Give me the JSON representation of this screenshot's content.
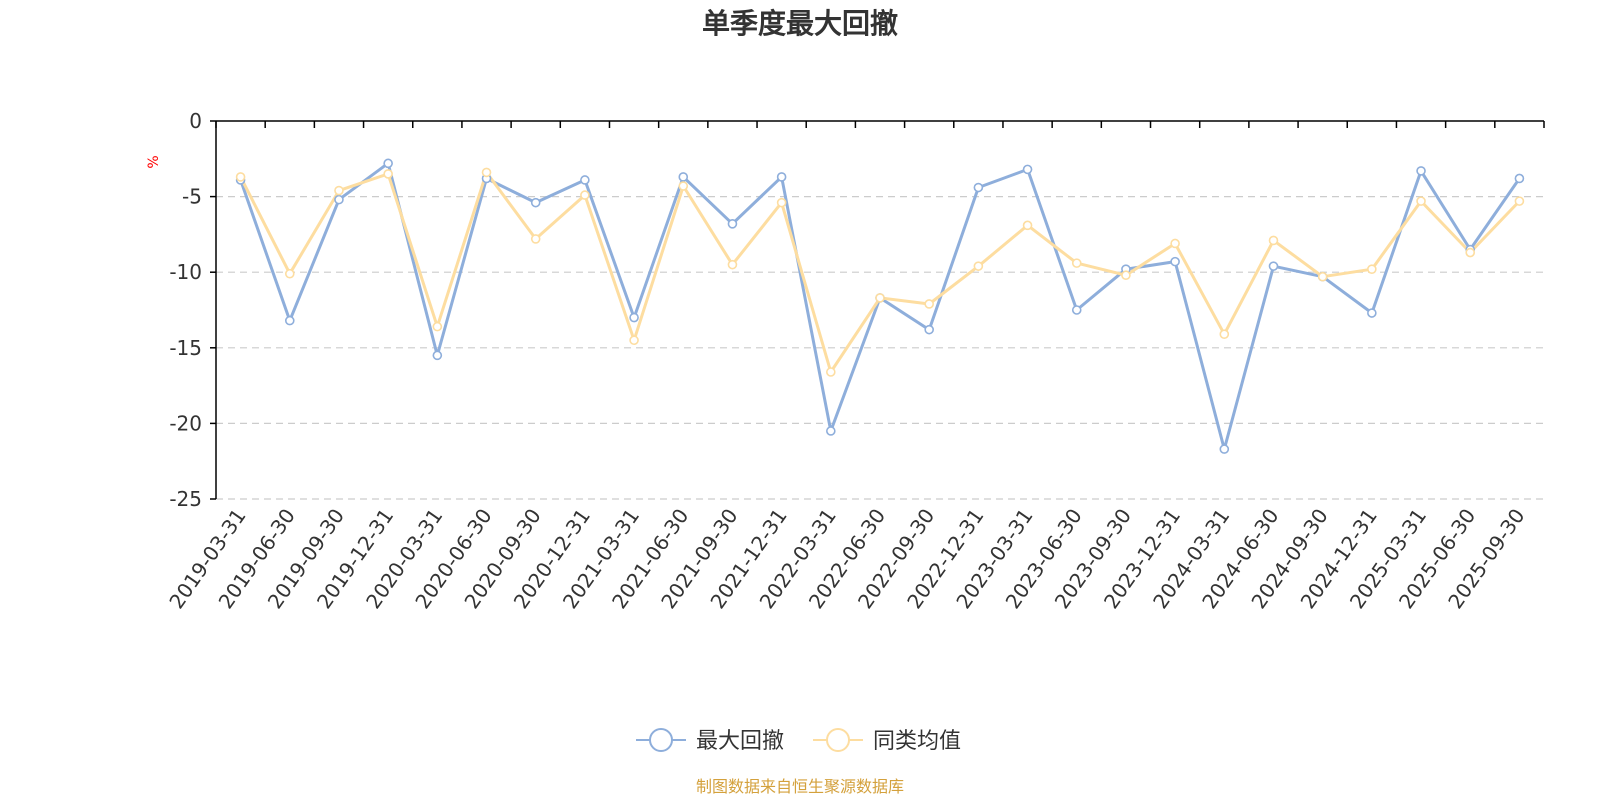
{
  "chart_data": {
    "type": "line",
    "title": "单季度最大回撤",
    "ylabel": "%",
    "ylim": [
      -25,
      0
    ],
    "yticks": [
      0,
      -5,
      -10,
      -15,
      -20,
      -25
    ],
    "grid": true,
    "legend_position": "bottom",
    "categories": [
      "2019-03-31",
      "2019-06-30",
      "2019-09-30",
      "2019-12-31",
      "2020-03-31",
      "2020-06-30",
      "2020-09-30",
      "2020-12-31",
      "2021-03-31",
      "2021-06-30",
      "2021-09-30",
      "2021-12-31",
      "2022-03-31",
      "2022-06-30",
      "2022-09-30",
      "2022-12-31",
      "2023-03-31",
      "2023-06-30",
      "2023-09-30",
      "2023-12-31",
      "2024-03-31",
      "2024-06-30",
      "2024-09-30",
      "2024-12-31",
      "2025-03-31",
      "2025-06-30",
      "2025-09-30"
    ],
    "series": [
      {
        "name": "最大回撤",
        "color": "#8eaedb",
        "values": [
          -3.9,
          -13.2,
          -5.2,
          -2.8,
          -15.5,
          -3.8,
          -5.4,
          -3.9,
          -13.0,
          -3.7,
          -6.8,
          -3.7,
          -20.5,
          -11.7,
          -13.8,
          -4.4,
          -3.2,
          -12.5,
          -9.8,
          -9.3,
          -21.7,
          -9.6,
          -10.3,
          -12.7,
          -3.3,
          -8.5,
          -3.8
        ]
      },
      {
        "name": "同类均值",
        "color": "#fddda0",
        "values": [
          -3.7,
          -10.1,
          -4.6,
          -3.5,
          -13.6,
          -3.4,
          -7.8,
          -4.9,
          -14.5,
          -4.3,
          -9.5,
          -5.4,
          -16.6,
          -11.7,
          -12.1,
          -9.6,
          -6.9,
          -9.4,
          -10.2,
          -8.1,
          -14.1,
          -7.9,
          -10.3,
          -9.8,
          -5.3,
          -8.7,
          -5.3
        ]
      }
    ]
  },
  "source_text": "制图数据来自恒生聚源数据库",
  "colors": {
    "axis": "#000000",
    "grid": "#cccccc",
    "unit": "#ff0000",
    "source": "#d4a13c"
  }
}
